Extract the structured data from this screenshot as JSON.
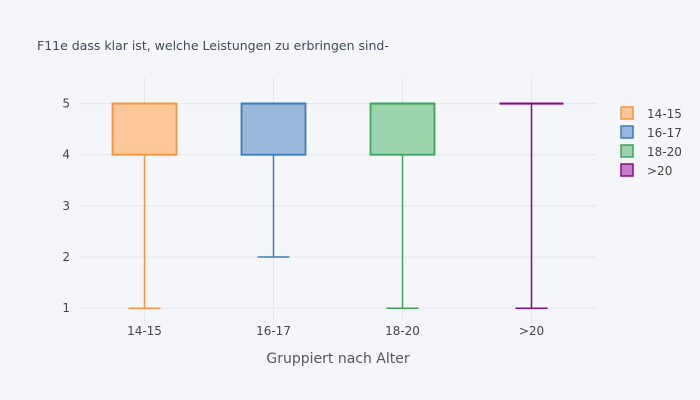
{
  "chart_data": {
    "type": "box",
    "title": "F11e dass klar ist, welche Leistungen zu erbringen sind-",
    "xlabel": "Gruppiert nach Alter",
    "ylabel": "",
    "ylim": [
      0.75,
      5.5
    ],
    "yticks": [
      1,
      2,
      3,
      4,
      5
    ],
    "grid": true,
    "legend_position": "right",
    "categories": [
      "14-15",
      "16-17",
      "18-20",
      ">20"
    ],
    "series": [
      {
        "name": "14-15",
        "color": "#f7953e",
        "fill": "#fdc79a",
        "min": 1,
        "q1": 4,
        "median": 5,
        "q3": 5,
        "max": 5
      },
      {
        "name": "16-17",
        "color": "#3a7dbb",
        "fill": "#99b8dc",
        "min": 2,
        "q1": 4,
        "median": 5,
        "q3": 5,
        "max": 5
      },
      {
        "name": "18-20",
        "color": "#3ba55c",
        "fill": "#9bd3ad",
        "min": 1,
        "q1": 4,
        "median": 5,
        "q3": 5,
        "max": 5
      },
      {
        "name": ">20",
        "color": "#8b0a8b",
        "fill": "#c77fc7",
        "min": 1,
        "q1": 5,
        "median": 5,
        "q3": 5,
        "max": 5
      }
    ]
  }
}
